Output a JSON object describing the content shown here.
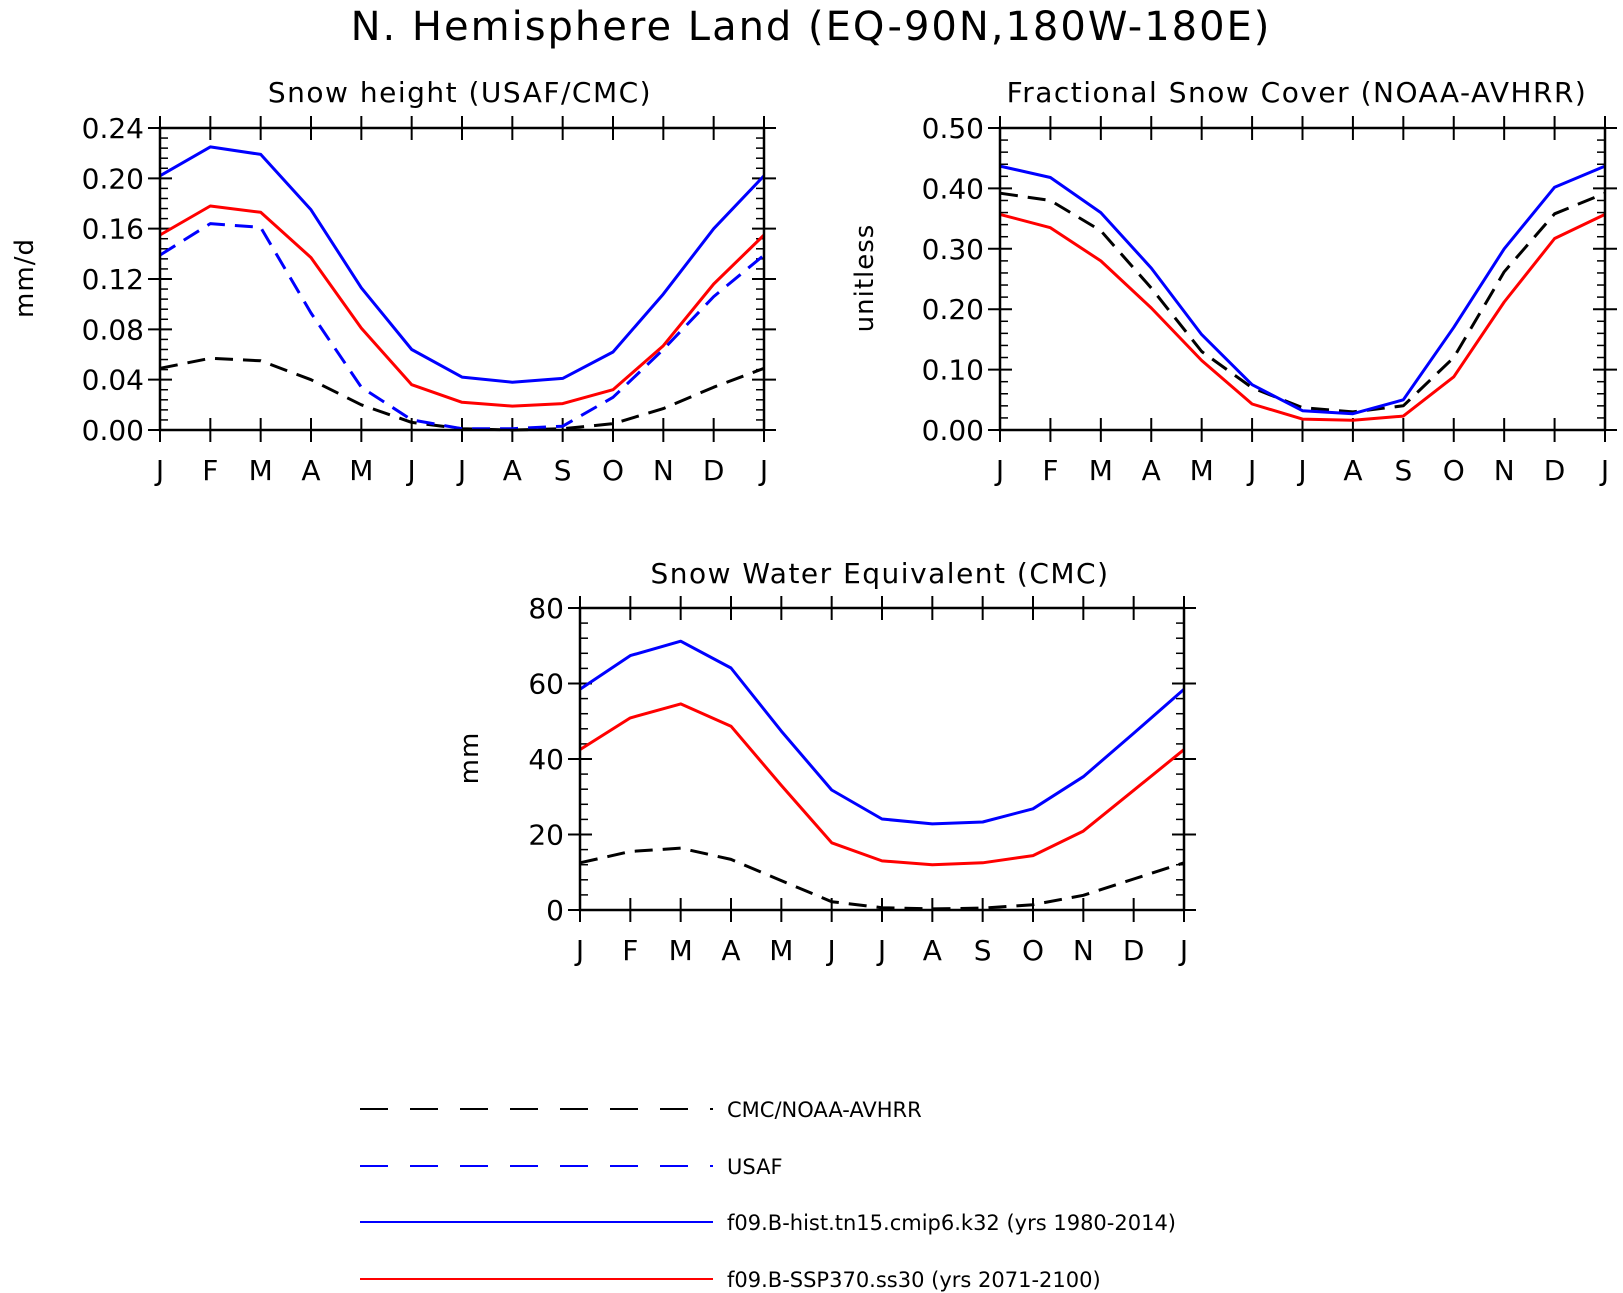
{
  "figure": {
    "title": "N. Hemisphere Land (EQ-90N,180W-180E)"
  },
  "legend": {
    "items": [
      {
        "label": "CMC/NOAA-AVHRR",
        "color": "#000000",
        "dashed": true
      },
      {
        "label": "USAF",
        "color": "#0000ff",
        "dashed": true
      },
      {
        "label": "f09.B-hist.tn15.cmip6.k32 (yrs 1980-2014)",
        "color": "#0000ff",
        "dashed": false
      },
      {
        "label": "f09.B-SSP370.ss30 (yrs 2071-2100)",
        "color": "#ff0000",
        "dashed": false
      }
    ]
  },
  "chart_data": [
    {
      "type": "line",
      "title": "Snow height (USAF/CMC)",
      "xlabel": "",
      "ylabel": "mm/d",
      "categories": [
        "J",
        "F",
        "M",
        "A",
        "M",
        "J",
        "J",
        "A",
        "S",
        "O",
        "N",
        "D",
        "J"
      ],
      "ylim": [
        0,
        0.24
      ],
      "yticks": [
        "0.00",
        "0.04",
        "0.08",
        "0.12",
        "0.16",
        "0.20",
        "0.24"
      ],
      "series": [
        {
          "name": "CMC/NOAA-AVHRR",
          "color": "#000000",
          "dashed": true,
          "values": [
            0.049,
            0.057,
            0.055,
            0.04,
            0.02,
            0.006,
            0.001,
            0.0,
            0.001,
            0.005,
            0.017,
            0.034,
            0.049
          ]
        },
        {
          "name": "USAF",
          "color": "#0000ff",
          "dashed": true,
          "values": [
            0.139,
            0.164,
            0.161,
            0.093,
            0.034,
            0.008,
            0.001,
            0.001,
            0.003,
            0.026,
            0.064,
            0.106,
            0.139
          ]
        },
        {
          "name": "f09.B-hist.tn15.cmip6.k32 (yrs 1980-2014)",
          "color": "#0000ff",
          "dashed": false,
          "values": [
            0.202,
            0.225,
            0.219,
            0.175,
            0.113,
            0.064,
            0.042,
            0.038,
            0.041,
            0.062,
            0.108,
            0.16,
            0.202
          ]
        },
        {
          "name": "f09.B-SSP370.ss30 (yrs 2071-2100)",
          "color": "#ff0000",
          "dashed": false,
          "values": [
            0.155,
            0.178,
            0.173,
            0.137,
            0.081,
            0.036,
            0.022,
            0.019,
            0.021,
            0.032,
            0.067,
            0.116,
            0.155
          ]
        }
      ]
    },
    {
      "type": "line",
      "title": "Fractional Snow Cover (NOAA-AVHRR)",
      "xlabel": "",
      "ylabel": "unitless",
      "categories": [
        "J",
        "F",
        "M",
        "A",
        "M",
        "J",
        "J",
        "A",
        "S",
        "O",
        "N",
        "D",
        "J"
      ],
      "ylim": [
        0,
        0.5
      ],
      "yticks": [
        "0.00",
        "0.10",
        "0.20",
        "0.30",
        "0.40",
        "0.50"
      ],
      "series": [
        {
          "name": "CMC/NOAA-AVHRR",
          "color": "#000000",
          "dashed": true,
          "values": [
            0.392,
            0.38,
            0.33,
            0.235,
            0.13,
            0.07,
            0.037,
            0.03,
            0.04,
            0.12,
            0.262,
            0.358,
            0.392
          ]
        },
        {
          "name": "f09.B-hist.tn15.cmip6.k32 (yrs 1980-2014)",
          "color": "#0000ff",
          "dashed": false,
          "values": [
            0.437,
            0.418,
            0.36,
            0.268,
            0.158,
            0.075,
            0.032,
            0.027,
            0.05,
            0.17,
            0.3,
            0.402,
            0.437
          ]
        },
        {
          "name": "f09.B-SSP370.ss30 (yrs 2071-2100)",
          "color": "#ff0000",
          "dashed": false,
          "values": [
            0.357,
            0.335,
            0.28,
            0.202,
            0.115,
            0.043,
            0.018,
            0.016,
            0.023,
            0.088,
            0.212,
            0.317,
            0.357
          ]
        }
      ]
    },
    {
      "type": "line",
      "title": "Snow Water Equivalent (CMC)",
      "xlabel": "",
      "ylabel": "mm",
      "categories": [
        "J",
        "F",
        "M",
        "A",
        "M",
        "J",
        "J",
        "A",
        "S",
        "O",
        "N",
        "D",
        "J"
      ],
      "ylim": [
        0,
        80
      ],
      "yticks": [
        "0",
        "20",
        "40",
        "60",
        "80"
      ],
      "series": [
        {
          "name": "CMC/NOAA-AVHRR",
          "color": "#000000",
          "dashed": true,
          "values": [
            12.5,
            15.5,
            16.4,
            13.4,
            7.8,
            2.2,
            0.6,
            0.3,
            0.5,
            1.4,
            3.9,
            8.2,
            12.5
          ]
        },
        {
          "name": "f09.B-hist.tn15.cmip6.k32 (yrs 1980-2014)",
          "color": "#0000ff",
          "dashed": false,
          "values": [
            58.5,
            67.4,
            71.2,
            64.1,
            47.4,
            31.8,
            24.1,
            22.8,
            23.3,
            26.8,
            35.3,
            46.8,
            58.5
          ]
        },
        {
          "name": "f09.B-SSP370.ss30 (yrs 2071-2100)",
          "color": "#ff0000",
          "dashed": false,
          "values": [
            42.5,
            50.9,
            54.6,
            48.7,
            33.0,
            17.8,
            13.0,
            12.0,
            12.5,
            14.4,
            20.9,
            31.7,
            42.5
          ]
        }
      ]
    }
  ]
}
